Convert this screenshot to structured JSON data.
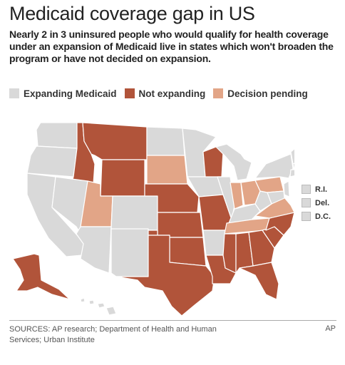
{
  "title": "Medicaid coverage gap in US",
  "subtitle": "Nearly 2 in 3 uninsured people who would qualify for health coverage under an expansion of Medicaid live in states which won't broaden the program or have not decided on expansion.",
  "legend": [
    {
      "label": "Expanding Medicaid",
      "color": "#d9d9d9"
    },
    {
      "label": "Not expanding",
      "color": "#b1543a"
    },
    {
      "label": "Decision pending",
      "color": "#e2a587"
    }
  ],
  "colors": {
    "expanding": "#d9d9d9",
    "not_expanding": "#b1543a",
    "pending": "#e2a587",
    "border": "#ffffff"
  },
  "small_states": [
    {
      "label": "R.I.",
      "status": "expanding"
    },
    {
      "label": "Del.",
      "status": "expanding"
    },
    {
      "label": "D.C.",
      "status": "expanding"
    }
  ],
  "states": {
    "WA": "expanding",
    "OR": "expanding",
    "CA": "expanding",
    "NV": "expanding",
    "ID": "not_expanding",
    "MT": "not_expanding",
    "WY": "not_expanding",
    "UT": "pending",
    "AZ": "expanding",
    "CO": "expanding",
    "NM": "expanding",
    "ND": "expanding",
    "SD": "pending",
    "NE": "not_expanding",
    "KS": "not_expanding",
    "OK": "not_expanding",
    "TX": "not_expanding",
    "MN": "expanding",
    "IA": "expanding",
    "MO": "not_expanding",
    "AR": "expanding",
    "LA": "not_expanding",
    "WI": "not_expanding",
    "IL": "expanding",
    "MI": "expanding",
    "IN": "pending",
    "OH": "pending",
    "KY": "expanding",
    "TN": "pending",
    "MS": "not_expanding",
    "AL": "not_expanding",
    "GA": "not_expanding",
    "FL": "not_expanding",
    "SC": "not_expanding",
    "NC": "not_expanding",
    "VA": "pending",
    "WV": "expanding",
    "PA": "pending",
    "NY": "expanding",
    "VT": "expanding",
    "NH": "pending",
    "ME": "not_expanding",
    "MA": "expanding",
    "CT": "expanding",
    "NJ": "expanding",
    "MD": "expanding",
    "AK": "not_expanding",
    "HI": "expanding"
  },
  "sources": "SOURCES: AP research; Department of Health and Human Services; Urban Institute",
  "credit": "AP"
}
